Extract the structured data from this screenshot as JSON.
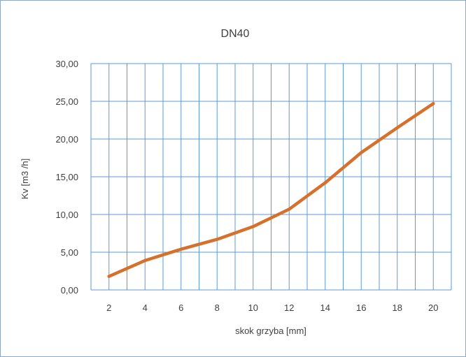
{
  "chart_data": {
    "type": "line",
    "title": "DN40",
    "xlabel": "skok grzyba [mm]",
    "ylabel": "Kv [m3 /h]",
    "x": [
      2,
      4,
      6,
      8,
      10,
      12,
      14,
      16,
      18,
      20
    ],
    "x_tick_labels": [
      "2",
      "4",
      "6",
      "8",
      "10",
      "12",
      "14",
      "16",
      "18",
      "20"
    ],
    "series": [
      {
        "values": [
          1.8,
          3.9,
          5.4,
          6.7,
          8.4,
          10.7,
          14.2,
          18.2,
          21.5,
          24.7
        ]
      }
    ],
    "ylim": [
      0,
      30
    ],
    "y_ticks": [
      0,
      5,
      10,
      15,
      20,
      25,
      30
    ],
    "y_tick_labels": [
      "0,00",
      "5,00",
      "10,00",
      "15,00",
      "20,00",
      "25,00",
      "30,00"
    ],
    "grid": true,
    "legend": "none",
    "colors": {
      "line": "#d6702a",
      "grid": "#5b9bd5",
      "text": "#404040",
      "frame": "#8fa7c7"
    }
  }
}
